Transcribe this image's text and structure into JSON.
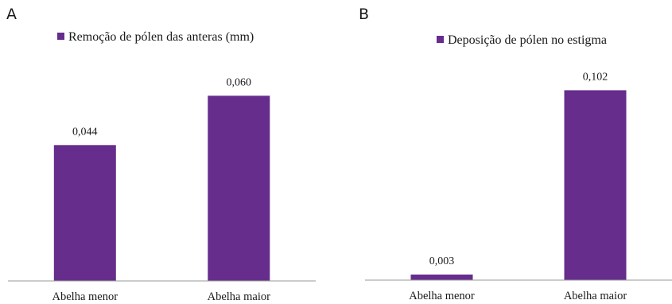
{
  "chart_data": [
    {
      "type": "bar",
      "panel": "A",
      "categories": [
        "Abelha menor",
        "Abelha maior"
      ],
      "series": [
        {
          "name": "Remoção de pólen das anteras (mm)",
          "values": [
            0.044,
            0.06
          ],
          "labels": [
            "0,044",
            "0,060"
          ]
        }
      ],
      "ylim": [
        0,
        0.066
      ],
      "grid": false,
      "legend_position": "top",
      "color": "#662d8c"
    },
    {
      "type": "bar",
      "panel": "B",
      "categories": [
        "Abelha menor",
        "Abelha maior"
      ],
      "series": [
        {
          "name": "Deposição de pólen no estigma",
          "values": [
            0.003,
            0.102
          ],
          "labels": [
            "0,003",
            "0,102"
          ]
        }
      ],
      "ylim": [
        0,
        0.112
      ],
      "grid": false,
      "legend_position": "top",
      "color": "#662d8c"
    }
  ]
}
